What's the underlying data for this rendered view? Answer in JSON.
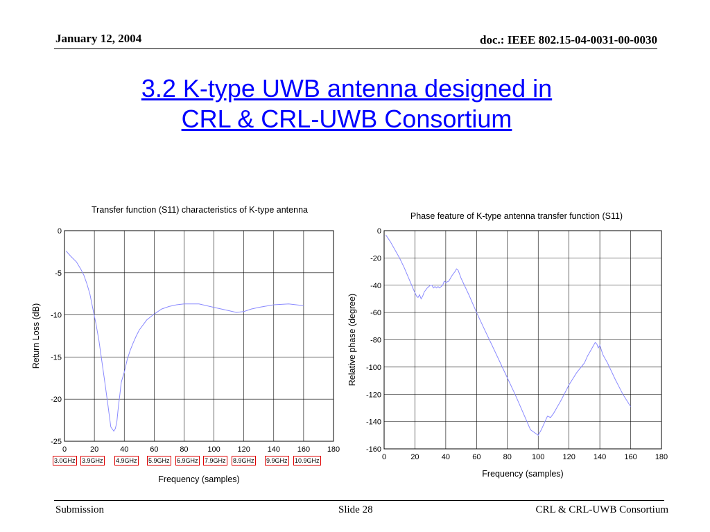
{
  "header": {
    "date": "January 12, 2004",
    "doc": "doc.: IEEE 802.15-04-0031-00-0030"
  },
  "slide": {
    "title_line1": "3.2 K-type UWB antenna designed in",
    "title_line2": "CRL & CRL-UWB Consortium"
  },
  "footer": {
    "left": "Submission",
    "center": "Slide 28",
    "right": "CRL & CRL-UWB Consortium"
  },
  "colors": {
    "title": "#0000ff",
    "curve": "#8a8aff",
    "grid": "#000000",
    "freq_box": "#e00000"
  },
  "freq_labels": [
    "3.0GHz",
    "3.9GHz",
    "4.9GHz",
    "5.9GHz",
    "6.9GHz",
    "7.9GHz",
    "8.9GHz",
    "9.9GHz",
    "10.9GHz"
  ],
  "chart_data": [
    {
      "type": "line",
      "title": "Transfer function (S11) characteristics of K-type antenna",
      "xlabel": "Frequency (samples)",
      "ylabel": "Return Loss (dB)",
      "xlim": [
        0,
        180
      ],
      "ylim": [
        -25,
        0
      ],
      "xticks": [
        0,
        20,
        40,
        60,
        80,
        100,
        120,
        140,
        160,
        180
      ],
      "yticks": [
        0,
        -5,
        -10,
        -15,
        -20,
        -25
      ],
      "grid": true,
      "series": [
        {
          "x": [
            1,
            4,
            8,
            11,
            13,
            15,
            17,
            19,
            21,
            23,
            25,
            27,
            29,
            31,
            33,
            34,
            35,
            36,
            37,
            38,
            40,
            42,
            44,
            46,
            48,
            50,
            55,
            60,
            65,
            70,
            75,
            80,
            90,
            100,
            110,
            115,
            120,
            125,
            130,
            140,
            150,
            160
          ],
          "y": [
            -2.4,
            -3.0,
            -3.7,
            -4.6,
            -5.3,
            -6.3,
            -7.5,
            -9.3,
            -11.0,
            -13.0,
            -15.5,
            -18.0,
            -20.6,
            -23.3,
            -23.8,
            -23.5,
            -22.8,
            -21.0,
            -19.5,
            -18.0,
            -16.8,
            -15.3,
            -14.2,
            -13.3,
            -12.5,
            -11.8,
            -10.6,
            -9.9,
            -9.3,
            -9.0,
            -8.8,
            -8.7,
            -8.7,
            -9.1,
            -9.5,
            -9.7,
            -9.6,
            -9.3,
            -9.1,
            -8.8,
            -8.7,
            -8.9
          ]
        }
      ]
    },
    {
      "type": "line",
      "title": "Phase feature of K-type antenna transfer function (S11)",
      "xlabel": "Frequency (samples)",
      "ylabel": "Relative phase (degree)",
      "xlim": [
        0,
        180
      ],
      "ylim": [
        -160,
        0
      ],
      "xticks": [
        0,
        20,
        40,
        60,
        80,
        100,
        120,
        140,
        160,
        180
      ],
      "yticks": [
        0,
        -20,
        -40,
        -60,
        -80,
        -100,
        -120,
        -140,
        -160
      ],
      "grid": true,
      "series": [
        {
          "x": [
            1,
            4,
            7,
            10,
            13,
            16,
            19,
            21,
            22,
            23,
            24,
            25,
            26,
            28,
            30,
            31,
            32,
            33,
            34,
            35,
            36,
            37,
            38,
            39,
            40,
            42,
            44,
            46,
            47,
            48,
            50,
            55,
            60,
            65,
            70,
            75,
            80,
            85,
            90,
            95,
            100,
            102,
            104,
            106,
            108,
            110,
            115,
            120,
            125,
            130,
            132,
            134,
            136,
            137,
            138,
            139,
            140,
            142,
            145,
            150,
            155,
            160
          ],
          "y": [
            -3,
            -8,
            -14,
            -20,
            -27,
            -35,
            -43,
            -48,
            -49,
            -47,
            -50,
            -48,
            -45,
            -42,
            -40,
            -40,
            -42,
            -41,
            -42,
            -41,
            -42,
            -41,
            -40,
            -37,
            -38,
            -37,
            -33,
            -30,
            -28,
            -29,
            -35,
            -47,
            -60,
            -72,
            -84,
            -96,
            -108,
            -120,
            -133,
            -146,
            -150,
            -146,
            -141,
            -136,
            -137,
            -134,
            -124,
            -113,
            -104,
            -97,
            -92,
            -88,
            -84,
            -82,
            -83,
            -86,
            -84,
            -91,
            -97,
            -109,
            -120,
            -129
          ]
        }
      ]
    }
  ]
}
